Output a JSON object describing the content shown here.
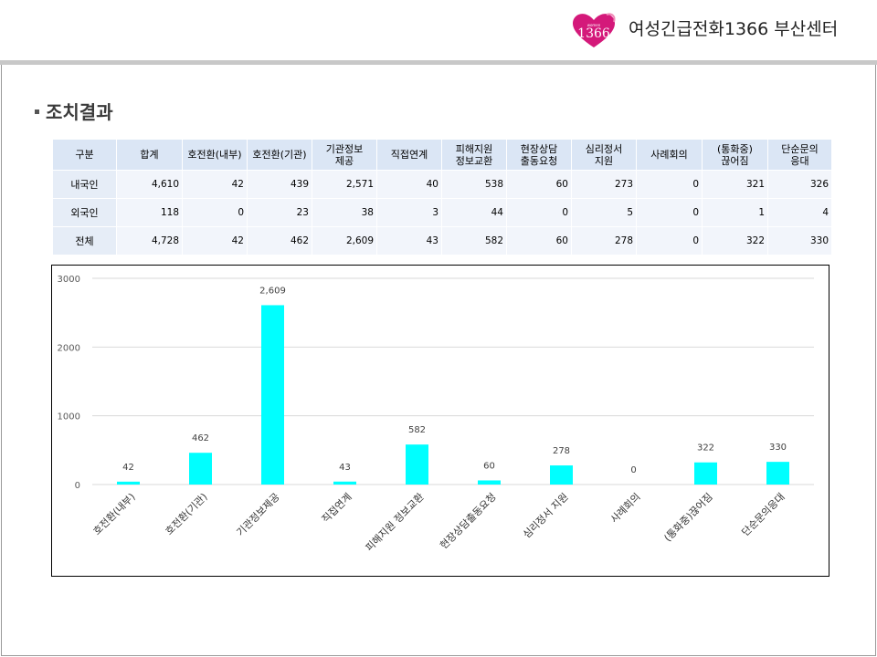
{
  "header": {
    "logo_text": "1366",
    "logo_small_text": "women",
    "org_name": "여성긴급전화1366 부산센터"
  },
  "section": {
    "title": "조치결과"
  },
  "table": {
    "headers": [
      "구분",
      "합계",
      "호전환(내부)",
      "호전환(기관)",
      "기관정보\n제공",
      "직접연계",
      "피해지원\n정보교환",
      "현장상담\n출동요청",
      "심리정서\n지원",
      "사례회의",
      "(통화중)\n끊어짐",
      "단순문의\n응대"
    ],
    "rows": [
      {
        "label": "내국인",
        "values": [
          "4,610",
          "42",
          "439",
          "2,571",
          "40",
          "538",
          "60",
          "273",
          "0",
          "321",
          "326"
        ]
      },
      {
        "label": "외국인",
        "values": [
          "118",
          "0",
          "23",
          "38",
          "3",
          "44",
          "0",
          "5",
          "0",
          "1",
          "4"
        ]
      },
      {
        "label": "전체",
        "values": [
          "4,728",
          "42",
          "462",
          "2,609",
          "43",
          "582",
          "60",
          "278",
          "0",
          "322",
          "330"
        ]
      }
    ]
  },
  "chart_data": {
    "type": "bar",
    "categories": [
      "호전환(내부)",
      "호전환(기관)",
      "기관정보제공",
      "직접연계",
      "피해지원 정보교환",
      "현장상담출동요청",
      "심리정서 지원",
      "사례회의",
      "(통화중)끊어짐",
      "단순문의응대"
    ],
    "values": [
      42,
      462,
      2609,
      43,
      582,
      60,
      278,
      0,
      322,
      330
    ],
    "value_labels": [
      "42",
      "462",
      "2,609",
      "43",
      "582",
      "60",
      "278",
      "0",
      "322",
      "330"
    ],
    "yticks": [
      "0",
      "1000",
      "2000",
      "3000"
    ],
    "ylim": [
      0,
      3000
    ],
    "grid": true,
    "bar_color": "#00ffff",
    "title": "",
    "xlabel": "",
    "ylabel": ""
  }
}
